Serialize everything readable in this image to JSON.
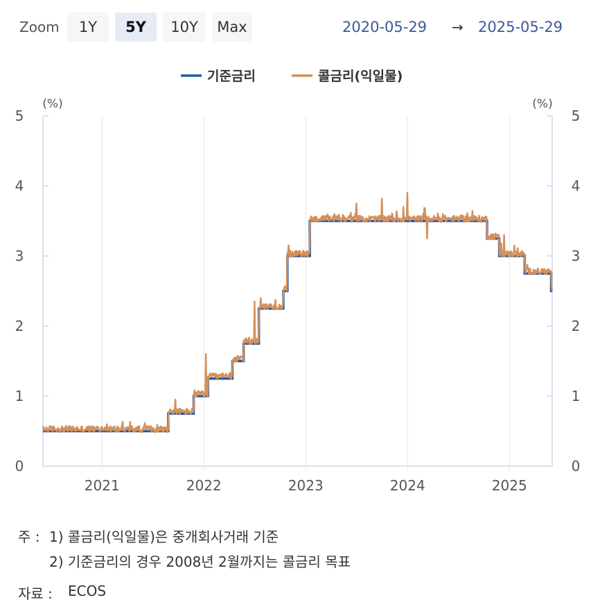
{
  "toolbar": {
    "zoom_label": "Zoom",
    "zoom_options": [
      "1Y",
      "5Y",
      "10Y",
      "Max"
    ],
    "active_zoom": "5Y",
    "range_start": "2020-05-29",
    "range_arrow": "→",
    "range_end": "2025-05-29"
  },
  "chart_data": {
    "type": "line",
    "unit_left": "(%)",
    "unit_right": "(%)",
    "ylim": [
      0,
      5
    ],
    "yticks": [
      "0",
      "1",
      "2",
      "3",
      "4",
      "5"
    ],
    "xlim": [
      2020.42,
      2025.42
    ],
    "xticks": [
      "2021",
      "2022",
      "2023",
      "2024",
      "2025"
    ],
    "legend_position": "top-center",
    "grid": "vertical",
    "series": [
      {
        "name": "기준금리",
        "color": "#1f5ba8",
        "style": "step",
        "points": [
          [
            2020.42,
            0.5
          ],
          [
            2021.65,
            0.75
          ],
          [
            2021.9,
            1.0
          ],
          [
            2022.04,
            1.25
          ],
          [
            2022.28,
            1.5
          ],
          [
            2022.39,
            1.75
          ],
          [
            2022.54,
            2.25
          ],
          [
            2022.78,
            2.5
          ],
          [
            2022.82,
            3.0
          ],
          [
            2023.04,
            3.5
          ],
          [
            2024.78,
            3.25
          ],
          [
            2024.9,
            3.0
          ],
          [
            2025.15,
            2.75
          ],
          [
            2025.41,
            2.5
          ]
        ]
      },
      {
        "name": "콜금리(익일물)",
        "color": "#d4905a",
        "style": "noisy",
        "spikes": [
          [
            2021.72,
            0.95
          ],
          [
            2022.02,
            1.6
          ],
          [
            2022.5,
            2.35
          ],
          [
            2022.56,
            2.4
          ],
          [
            2022.83,
            3.15
          ],
          [
            2023.5,
            3.75
          ],
          [
            2023.75,
            3.82
          ],
          [
            2023.96,
            3.7
          ],
          [
            2024.0,
            3.9
          ],
          [
            2024.17,
            3.68
          ],
          [
            2024.19,
            3.25
          ],
          [
            2024.95,
            3.3
          ],
          [
            2025.05,
            3.15
          ]
        ]
      }
    ]
  },
  "notes": {
    "line1_prefix": "주 :",
    "line1": "1)  콜금리(익일물)은 중개회사거래 기준",
    "line2": "2)  기준금리의 경우 2008년 2월까지는 콜금리 목표",
    "source_label": "자료 :",
    "source_value": "ECOS"
  }
}
